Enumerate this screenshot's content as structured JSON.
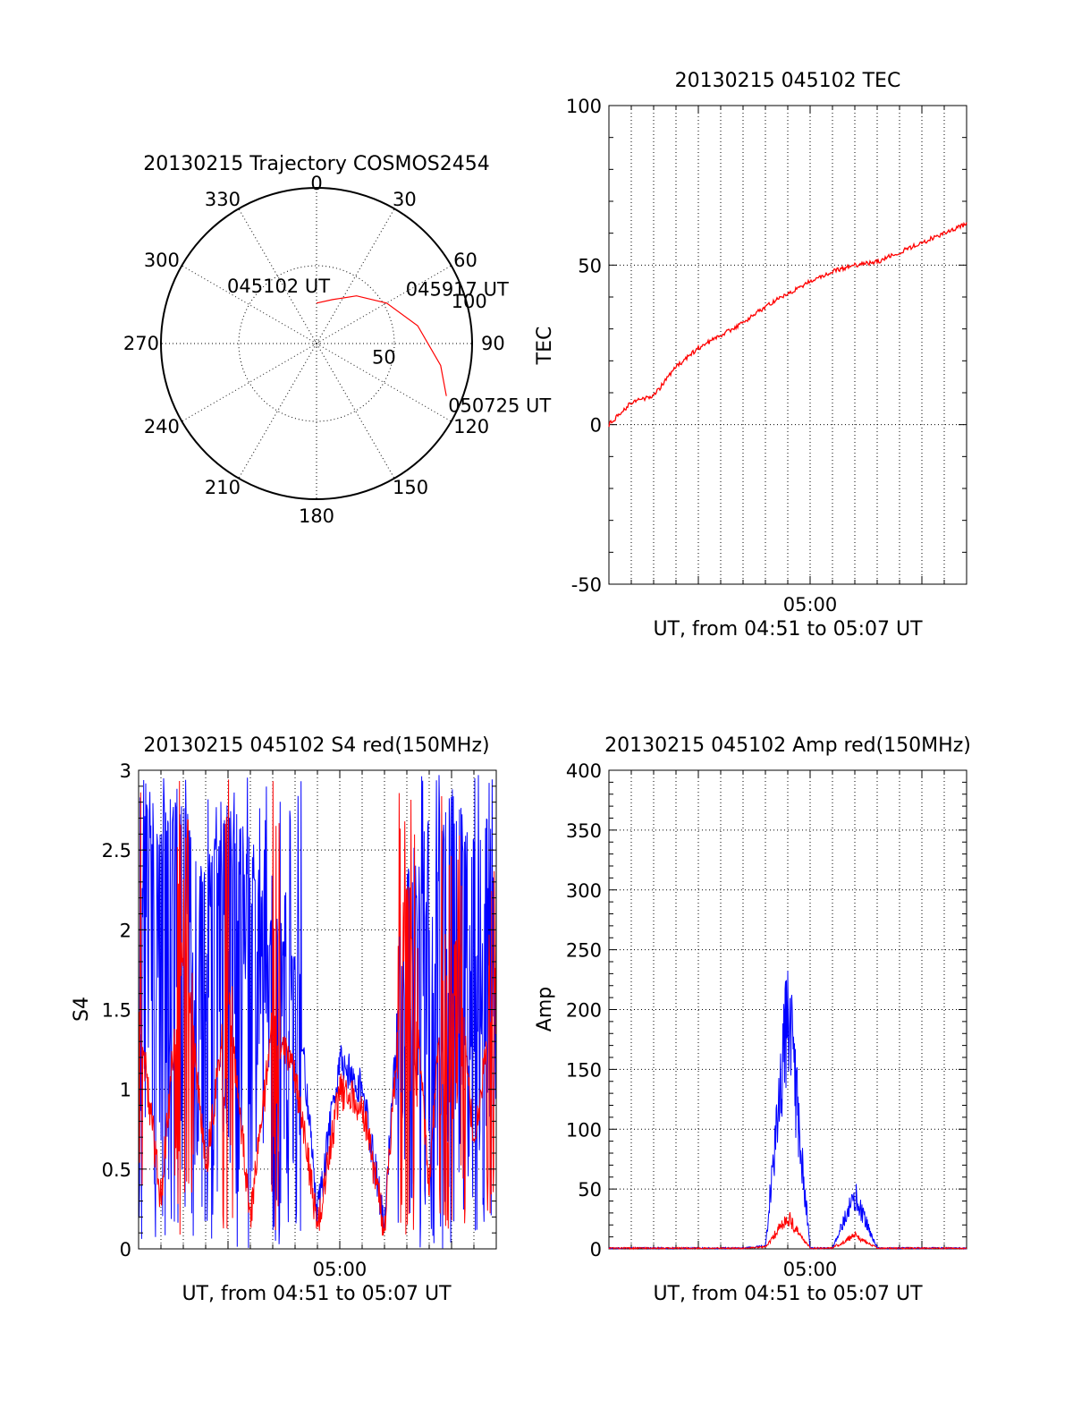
{
  "chart_data": [
    {
      "type": "polar",
      "title": "20130215 Trajectory COSMOS2454",
      "angle_labels": [
        "0",
        "30",
        "60",
        "90",
        "120",
        "150",
        "180",
        "210",
        "240",
        "270",
        "300",
        "330"
      ],
      "radial_labels": [
        "50",
        "100"
      ],
      "radial_range": [
        0,
        100
      ],
      "series": [
        {
          "color": "#ff0000",
          "points": [
            {
              "azimuth": 0,
              "radius": 26
            },
            {
              "azimuth": 20,
              "radius": 30
            },
            {
              "azimuth": 40,
              "radius": 40
            },
            {
              "azimuth": 60,
              "radius": 52
            },
            {
              "azimuth": 80,
              "radius": 66
            },
            {
              "azimuth": 100,
              "radius": 81
            },
            {
              "azimuth": 112,
              "radius": 90
            }
          ]
        }
      ],
      "annotations": [
        {
          "text": "045102 UT",
          "azimuth": 0,
          "radius": 26
        },
        {
          "text": "045917 UT",
          "azimuth": 40,
          "radius": 40
        },
        {
          "text": "050725 UT",
          "azimuth": 112,
          "radius": 90
        }
      ]
    },
    {
      "type": "line",
      "title": "20130215 045102 TEC",
      "xlabel": "UT, from 04:51 to 05:07 UT",
      "ylabel": "TEC",
      "xlim": [
        "04:51",
        "05:07"
      ],
      "ylim": [
        -50,
        100
      ],
      "x_ticks": [
        "05:00"
      ],
      "y_ticks": [
        "-50",
        "0",
        "50",
        "100"
      ],
      "grid": true,
      "series": [
        {
          "color": "#ff0000",
          "x": [
            "04:51",
            "04:52",
            "04:53",
            "04:54",
            "04:55",
            "04:56",
            "04:57",
            "04:58",
            "04:59",
            "05:00",
            "05:01",
            "05:02",
            "05:03",
            "05:04",
            "05:05",
            "05:06",
            "05:07"
          ],
          "values": [
            0,
            7,
            9,
            18,
            24,
            28,
            32,
            37,
            41,
            45,
            48,
            50,
            51,
            54,
            57,
            60,
            63
          ]
        }
      ]
    },
    {
      "type": "line",
      "title": "20130215 045102 S4 red(150MHz)",
      "xlabel": "UT, from 04:51 to 05:07 UT",
      "ylabel": "S4",
      "xlim": [
        "04:51",
        "05:07"
      ],
      "ylim": [
        0,
        3
      ],
      "x_ticks": [
        "05:00"
      ],
      "y_ticks": [
        "0",
        "0.5",
        "1",
        "1.5",
        "2",
        "2.5",
        "3"
      ],
      "grid": true,
      "series": [
        {
          "color": "#0000ff",
          "x": [
            "04:51",
            "04:52",
            "04:53",
            "04:54",
            "04:55",
            "04:56",
            "04:57",
            "04:58",
            "04:59",
            "05:00",
            "05:01",
            "05:02",
            "05:03",
            "05:04",
            "05:05",
            "05:06",
            "05:07"
          ],
          "values": [
            2.9,
            2.6,
            2.8,
            2.3,
            2.7,
            2.5,
            2.0,
            1.8,
            0.2,
            1.2,
            1.0,
            0.15,
            2.4,
            2.1,
            2.8,
            2.5,
            2.7
          ]
        },
        {
          "color": "#ff0000",
          "x": [
            "04:51",
            "04:52",
            "04:53",
            "04:54",
            "04:55",
            "04:56",
            "04:57",
            "04:58",
            "04:59",
            "05:00",
            "05:01",
            "05:02",
            "05:03",
            "05:04",
            "05:05",
            "05:06",
            "05:07"
          ],
          "values": [
            1.5,
            0.3,
            2.0,
            0.5,
            1.6,
            0.2,
            1.4,
            1.1,
            0.15,
            1.0,
            0.9,
            0.13,
            2.2,
            0.4,
            2.5,
            0.6,
            1.8
          ]
        }
      ]
    },
    {
      "type": "line",
      "title": "20130215 045102 Amp red(150MHz)",
      "xlabel": "UT, from 04:51 to 05:07 UT",
      "ylabel": "Amp",
      "xlim": [
        "04:51",
        "05:07"
      ],
      "ylim": [
        0,
        400
      ],
      "x_ticks": [
        "05:00"
      ],
      "y_ticks": [
        "0",
        "50",
        "100",
        "150",
        "200",
        "250",
        "300",
        "350",
        "400"
      ],
      "grid": true,
      "series": [
        {
          "color": "#0000ff",
          "x": [
            "04:51",
            "04:57",
            "04:58",
            "04:59",
            "05:00",
            "05:01",
            "05:02",
            "05:03",
            "05:04",
            "05:07"
          ],
          "values": [
            0,
            0,
            2,
            262,
            0,
            0,
            58,
            0,
            0,
            0
          ]
        },
        {
          "color": "#ff0000",
          "x": [
            "04:51",
            "04:57",
            "04:58",
            "04:59",
            "05:00",
            "05:01",
            "05:02",
            "05:03",
            "05:04",
            "05:07"
          ],
          "values": [
            0,
            0,
            1,
            35,
            0,
            0,
            15,
            0,
            0,
            0
          ]
        }
      ]
    }
  ]
}
